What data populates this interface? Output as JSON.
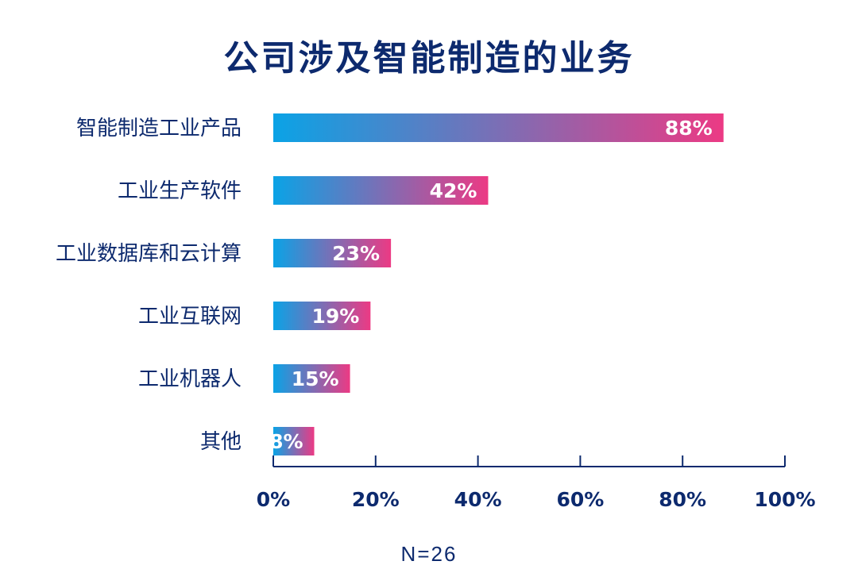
{
  "colors": {
    "title": "#0d2a6e",
    "label": "#0d2a6e",
    "axis": "#0d2a6e",
    "gradient_start": "#0aa3e6",
    "gradient_end": "#ec3a84",
    "value_text": "#ffffff"
  },
  "footnote": "N=26",
  "chart_data": {
    "type": "bar",
    "orientation": "horizontal",
    "title": "公司涉及智能制造的业务",
    "categories": [
      "智能制造工业产品",
      "工业生产软件",
      "工业数据库和云计算",
      "工业互联网",
      "工业机器人",
      "其他"
    ],
    "values": [
      88,
      42,
      23,
      19,
      15,
      8
    ],
    "value_labels": [
      "88%",
      "42%",
      "23%",
      "19%",
      "15%",
      "8%"
    ],
    "xlim": [
      0,
      100
    ],
    "x_ticks": [
      0,
      20,
      40,
      60,
      80,
      100
    ],
    "x_tick_labels": [
      "0%",
      "20%",
      "40%",
      "60%",
      "80%",
      "100%"
    ],
    "xlabel": "",
    "ylabel": "",
    "grid": false,
    "legend": "none"
  }
}
